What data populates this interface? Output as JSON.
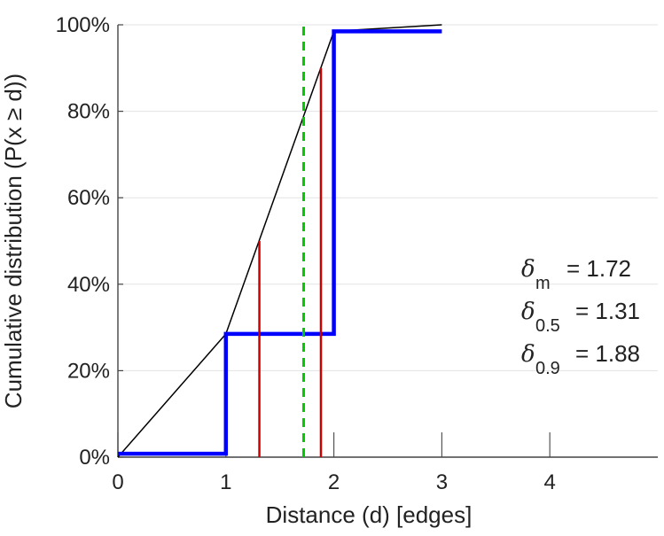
{
  "chart_data": {
    "type": "line",
    "title": "",
    "xlabel": "Distance (d) [edges]",
    "ylabel": "Cumulative distribution (P(x ≥ d))",
    "xlim": [
      0,
      5
    ],
    "ylim": [
      0,
      100
    ],
    "x_ticks": [
      "0",
      "1",
      "2",
      "3",
      "4"
    ],
    "y_ticks": [
      "0%",
      "20%",
      "40%",
      "60%",
      "80%",
      "100%"
    ],
    "grid": "horizontal",
    "step_series": {
      "color": "#0000ff",
      "points": [
        [
          0,
          0.8
        ],
        [
          1,
          0.8
        ],
        [
          1,
          28.5
        ],
        [
          2,
          28.5
        ],
        [
          2,
          98.5
        ],
        [
          3,
          98.5
        ]
      ]
    },
    "linear_series": {
      "color": "#000000",
      "points": [
        [
          0,
          0
        ],
        [
          1,
          28.5
        ],
        [
          2,
          98.5
        ],
        [
          3,
          100
        ]
      ]
    },
    "markers": [
      {
        "kind": "median",
        "x": 1.31,
        "y": 50,
        "color": "#cc0000"
      },
      {
        "kind": "p90",
        "x": 1.88,
        "y": 90,
        "color": "#cc0000"
      },
      {
        "kind": "mean",
        "x": 1.72,
        "color": "#00cc00",
        "dashed": true
      }
    ],
    "annotations": [
      {
        "symbol": "δ",
        "sub": "m",
        "text": "= 1.72"
      },
      {
        "symbol": "δ",
        "sub": "0.5",
        "text": "= 1.31"
      },
      {
        "symbol": "δ",
        "sub": "0.9",
        "text": "= 1.88"
      }
    ]
  }
}
